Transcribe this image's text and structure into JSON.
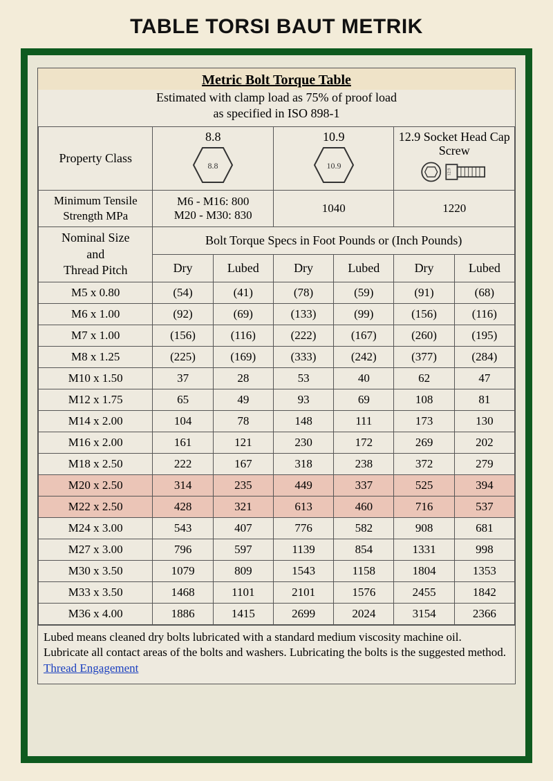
{
  "page_title": "TABLE TORSI BAUT METRIK",
  "frame_border_color": "#0e5a1f",
  "page_bg": "#f3ecd9",
  "inner_bg": "#eeeadf",
  "grid_color": "#555555",
  "highlight_color": "rgba(228,130,110,0.35)",
  "header": {
    "title": "Metric Bolt Torque Table",
    "subtitle_line1": "Estimated with clamp load as 75% of proof load",
    "subtitle_line2": "as specified in ISO 898-1"
  },
  "property_class_label": "Property Class",
  "classes": [
    {
      "label": "8.8",
      "icon": "hex",
      "icon_text": "8.8"
    },
    {
      "label": "10.9",
      "icon": "hex",
      "icon_text": "10.9"
    },
    {
      "label": "12.9 Socket Head Cap Screw",
      "icon": "socket",
      "icon_text": "12.9"
    }
  ],
  "min_tensile_label": "Minimum Tensile Strength MPa",
  "min_tensile_values": {
    "c88_line1": "M6 - M16:  800",
    "c88_line2": "M20 - M30:  830",
    "c109": "1040",
    "c129": "1220"
  },
  "nominal_label_line1": "Nominal Size",
  "nominal_label_line2": "and",
  "nominal_label_line3": "Thread Pitch",
  "spec_header": "Bolt Torque Specs in Foot Pounds or (Inch Pounds)",
  "col_labels": {
    "dry": "Dry",
    "lubed": "Lubed"
  },
  "rows": [
    {
      "size": "M5 x 0.80",
      "v": [
        "(54)",
        "(41)",
        "(78)",
        "(59)",
        "(91)",
        "(68)"
      ],
      "hl": false
    },
    {
      "size": "M6 x 1.00",
      "v": [
        "(92)",
        "(69)",
        "(133)",
        "(99)",
        "(156)",
        "(116)"
      ],
      "hl": false
    },
    {
      "size": "M7 x 1.00",
      "v": [
        "(156)",
        "(116)",
        "(222)",
        "(167)",
        "(260)",
        "(195)"
      ],
      "hl": false
    },
    {
      "size": "M8 x 1.25",
      "v": [
        "(225)",
        "(169)",
        "(333)",
        "(242)",
        "(377)",
        "(284)"
      ],
      "hl": false
    },
    {
      "size": "M10 x 1.50",
      "v": [
        "37",
        "28",
        "53",
        "40",
        "62",
        "47"
      ],
      "hl": false
    },
    {
      "size": "M12 x 1.75",
      "v": [
        "65",
        "49",
        "93",
        "69",
        "108",
        "81"
      ],
      "hl": false
    },
    {
      "size": "M14 x 2.00",
      "v": [
        "104",
        "78",
        "148",
        "111",
        "173",
        "130"
      ],
      "hl": false
    },
    {
      "size": "M16 x 2.00",
      "v": [
        "161",
        "121",
        "230",
        "172",
        "269",
        "202"
      ],
      "hl": false
    },
    {
      "size": "M18 x 2.50",
      "v": [
        "222",
        "167",
        "318",
        "238",
        "372",
        "279"
      ],
      "hl": false
    },
    {
      "size": "M20 x 2.50",
      "v": [
        "314",
        "235",
        "449",
        "337",
        "525",
        "394"
      ],
      "hl": true
    },
    {
      "size": "M22 x 2.50",
      "v": [
        "428",
        "321",
        "613",
        "460",
        "716",
        "537"
      ],
      "hl": true
    },
    {
      "size": "M24 x 3.00",
      "v": [
        "543",
        "407",
        "776",
        "582",
        "908",
        "681"
      ],
      "hl": false
    },
    {
      "size": "M27 x 3.00",
      "v": [
        "796",
        "597",
        "1139",
        "854",
        "1331",
        "998"
      ],
      "hl": false
    },
    {
      "size": "M30 x 3.50",
      "v": [
        "1079",
        "809",
        "1543",
        "1158",
        "1804",
        "1353"
      ],
      "hl": false
    },
    {
      "size": "M33 x 3.50",
      "v": [
        "1468",
        "1101",
        "2101",
        "1576",
        "2455",
        "1842"
      ],
      "hl": false
    },
    {
      "size": "M36 x 4.00",
      "v": [
        "1886",
        "1415",
        "2699",
        "2024",
        "3154",
        "2366"
      ],
      "hl": false
    }
  ],
  "footnote_text": "Lubed means cleaned dry bolts lubricated with a standard medium viscosity machine oil. Lubricate all contact areas of the bolts and washers. Lubricating the bolts is the suggested method.  ",
  "footnote_link": "Thread Engagement"
}
